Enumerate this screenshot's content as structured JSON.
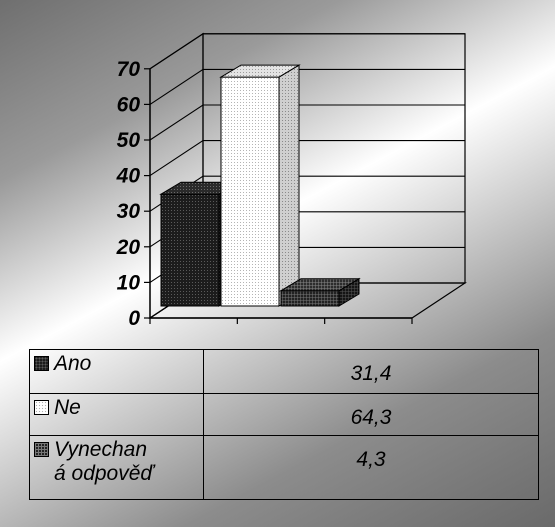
{
  "chart_data": {
    "type": "bar",
    "categories": [
      "Ano",
      "Ne",
      "Vynechaná odpověď"
    ],
    "values": [
      31.4,
      64.3,
      4.3
    ],
    "value_labels": [
      "31,4",
      "64,3",
      "4,3"
    ],
    "category_labels": [
      [
        "Ano"
      ],
      [
        "Ne"
      ],
      [
        "Vynechan",
        "á odpověď"
      ]
    ],
    "y_ticks": [
      "0",
      "10",
      "20",
      "30",
      "40",
      "50",
      "60",
      "70"
    ],
    "ylim": [
      0,
      70
    ],
    "style": "3d-column",
    "legend": "data table below chart",
    "grid": true
  }
}
